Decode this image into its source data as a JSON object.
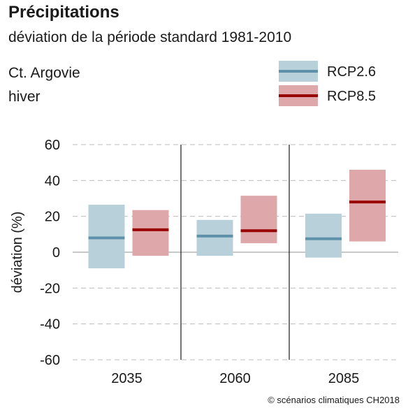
{
  "chart_data": {
    "type": "bar",
    "title": "Précipitations",
    "subtitle": "déviation de la période standard 1981-2010",
    "region": "Ct. Argovie",
    "season": "hiver",
    "ylabel": "déviation (%)",
    "xlabel": "",
    "ylim": [
      -60,
      60
    ],
    "yticks": [
      60,
      40,
      20,
      0,
      -20,
      -40,
      -60
    ],
    "grid": true,
    "legend_position": "top-right",
    "categories": [
      "2035",
      "2060",
      "2085"
    ],
    "series": [
      {
        "name": "RCP2.6",
        "fill_color": "#b7d0da",
        "line_color": "#5f92aa",
        "low": [
          -9,
          -2,
          -3
        ],
        "median": [
          8,
          9,
          7.5
        ],
        "high": [
          26.5,
          18,
          21.5
        ]
      },
      {
        "name": "RCP8.5",
        "fill_color": "#dea8ab",
        "line_color": "#990000",
        "low": [
          -2,
          5,
          6
        ],
        "median": [
          12.5,
          12,
          28
        ],
        "high": [
          23.5,
          31.5,
          46
        ]
      }
    ]
  },
  "credit": "© scénarios climatiques CH2018"
}
